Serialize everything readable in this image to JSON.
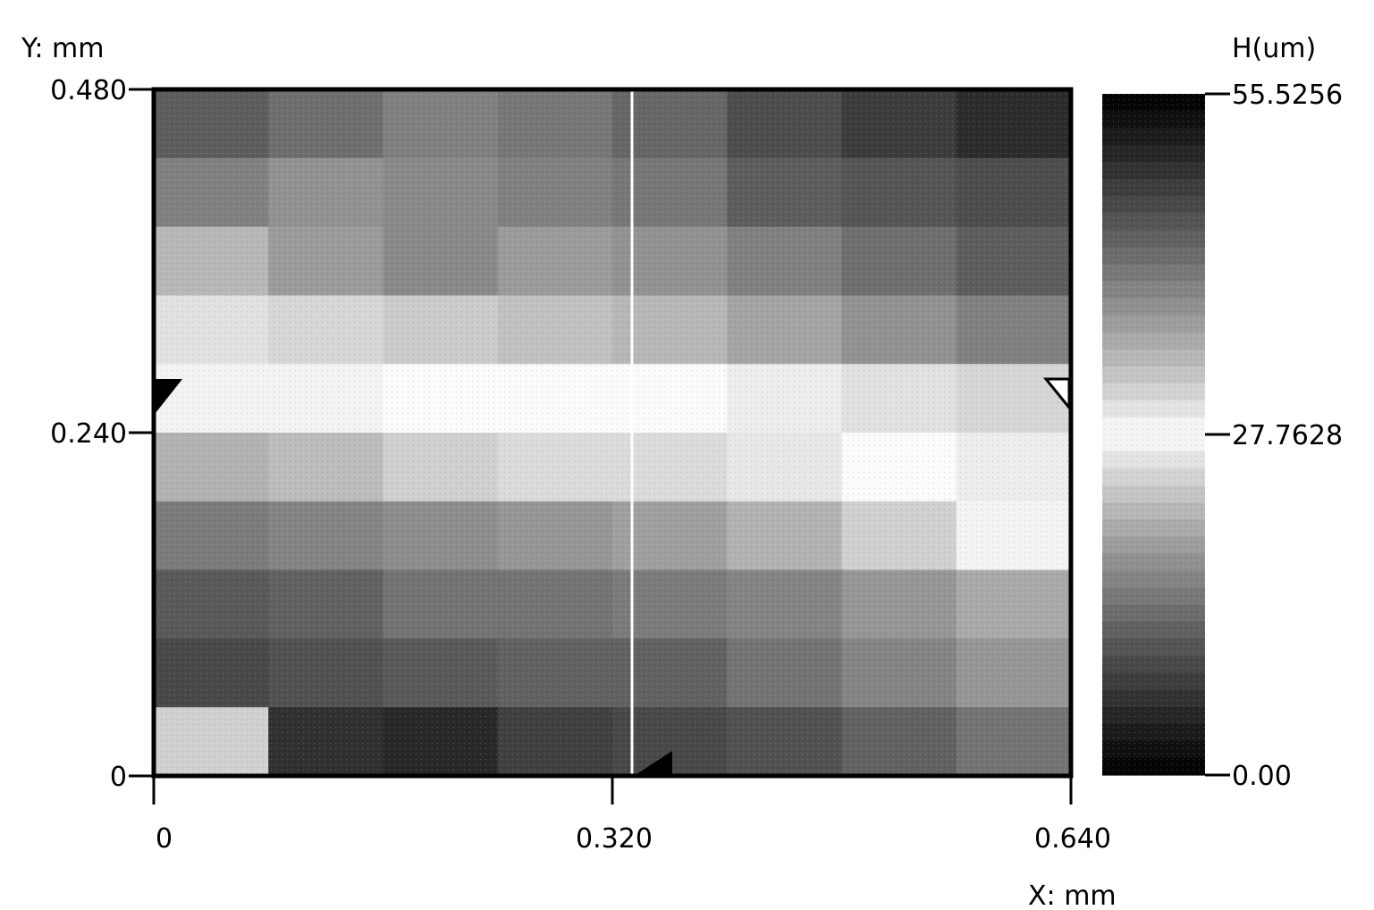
{
  "chart_data": {
    "type": "heatmap",
    "title": "",
    "ylabel": "Y: mm",
    "xlabel": "X: mm",
    "colorbar_label": "H(um)",
    "x_range": [
      0,
      0.64
    ],
    "y_range": [
      0,
      0.48
    ],
    "x_ticks": [
      {
        "value": 0,
        "label": "0"
      },
      {
        "value": 0.32,
        "label": "0.320"
      },
      {
        "value": 0.64,
        "label": "0.640"
      }
    ],
    "y_ticks": [
      {
        "value": 0,
        "label": "0"
      },
      {
        "value": 0.24,
        "label": "0.240"
      },
      {
        "value": 0.48,
        "label": "0.480"
      }
    ],
    "colorbar_ticks": [
      {
        "value": 0,
        "label": "0.00"
      },
      {
        "value": 27.7628,
        "label": "27.7628"
      },
      {
        "value": 55.5256,
        "label": "55.5256"
      }
    ],
    "colorbar_range": [
      0,
      55.5256
    ],
    "colormap": {
      "low": "#000000",
      "mid": "#ffffff",
      "high": "#000000"
    },
    "surface_rows_top_to_bottom": [
      [
        44,
        42,
        40,
        41,
        43,
        46,
        48,
        50
      ],
      [
        40,
        38,
        39,
        40,
        41,
        44,
        45,
        46
      ],
      [
        34,
        37,
        39,
        37,
        38,
        40,
        42,
        44
      ],
      [
        30,
        31,
        32,
        33,
        34,
        36,
        38,
        40
      ],
      [
        27,
        27,
        28,
        28,
        28,
        29,
        30,
        31
      ],
      [
        21,
        22,
        24,
        25,
        25,
        26,
        28,
        29
      ],
      [
        15,
        16,
        17,
        18,
        19,
        21,
        24,
        27
      ],
      [
        11,
        12,
        14,
        14,
        15,
        16,
        18,
        20
      ],
      [
        9,
        10,
        11,
        12,
        12,
        14,
        16,
        18
      ],
      [
        24,
        6,
        5,
        8,
        9,
        10,
        12,
        14
      ]
    ]
  }
}
